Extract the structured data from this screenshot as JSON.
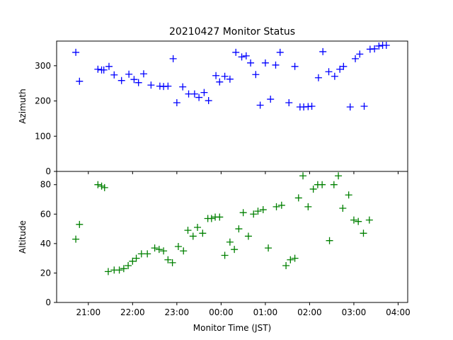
{
  "chart_data": {
    "type": "scatter",
    "title": "20210427 Monitor Status",
    "xlabel": "Monitor Time (JST)",
    "x_ticks": [
      "21:00",
      "22:00",
      "23:00",
      "00:00",
      "01:00",
      "02:00",
      "03:00",
      "04:00"
    ],
    "panels": [
      {
        "ylabel": "Azimuth",
        "ylim": [
          0,
          370
        ],
        "y_ticks": [
          0,
          100,
          200,
          300
        ],
        "series": [
          {
            "marker": "plus",
            "color": "#0000ff",
            "points": [
              [
                "20:43",
                338
              ],
              [
                "20:48",
                256
              ],
              [
                "21:13",
                290
              ],
              [
                "21:18",
                288
              ],
              [
                "21:21",
                288
              ],
              [
                "21:28",
                298
              ],
              [
                "21:35",
                274
              ],
              [
                "21:45",
                258
              ],
              [
                "21:55",
                276
              ],
              [
                "22:02",
                261
              ],
              [
                "22:08",
                252
              ],
              [
                "22:15",
                277
              ],
              [
                "22:25",
                245
              ],
              [
                "22:37",
                242
              ],
              [
                "22:42",
                241
              ],
              [
                "22:48",
                242
              ],
              [
                "22:55",
                320
              ],
              [
                "23:00",
                195
              ],
              [
                "23:08",
                240
              ],
              [
                "23:16",
                220
              ],
              [
                "23:24",
                220
              ],
              [
                "23:30",
                210
              ],
              [
                "23:37",
                224
              ],
              [
                "23:43",
                201
              ],
              [
                "23:53",
                272
              ],
              [
                "23:58",
                254
              ],
              [
                "00:05",
                270
              ],
              [
                "00:12",
                262
              ],
              [
                "00:20",
                338
              ],
              [
                "00:28",
                325
              ],
              [
                "00:34",
                328
              ],
              [
                "00:40",
                308
              ],
              [
                "00:47",
                275
              ],
              [
                "00:53",
                188
              ],
              [
                "01:00",
                308
              ],
              [
                "01:07",
                205
              ],
              [
                "01:14",
                302
              ],
              [
                "01:20",
                338
              ],
              [
                "01:32",
                195
              ],
              [
                "01:40",
                298
              ],
              [
                "01:47",
                183
              ],
              [
                "01:52",
                183
              ],
              [
                "01:58",
                184
              ],
              [
                "02:03",
                185
              ],
              [
                "02:12",
                266
              ],
              [
                "02:18",
                340
              ],
              [
                "02:26",
                283
              ],
              [
                "02:34",
                270
              ],
              [
                "02:41",
                290
              ],
              [
                "02:46",
                298
              ],
              [
                "02:55",
                183
              ],
              [
                "03:02",
                320
              ],
              [
                "03:08",
                333
              ],
              [
                "03:14",
                185
              ],
              [
                "03:22",
                347
              ],
              [
                "03:28",
                348
              ],
              [
                "03:34",
                356
              ],
              [
                "03:39",
                358
              ],
              [
                "03:44",
                358
              ]
            ]
          }
        ]
      },
      {
        "ylabel": "Altitude",
        "ylim": [
          0,
          89
        ],
        "y_ticks": [
          0,
          20,
          40,
          60,
          80
        ],
        "series": [
          {
            "marker": "plus",
            "color": "#008000",
            "points": [
              [
                "20:43",
                43
              ],
              [
                "20:48",
                53
              ],
              [
                "21:13",
                80
              ],
              [
                "21:18",
                79
              ],
              [
                "21:22",
                78
              ],
              [
                "21:27",
                21
              ],
              [
                "21:35",
                22
              ],
              [
                "21:42",
                22
              ],
              [
                "21:48",
                23
              ],
              [
                "21:54",
                25
              ],
              [
                "22:00",
                28
              ],
              [
                "22:05",
                30
              ],
              [
                "22:12",
                33
              ],
              [
                "22:20",
                33
              ],
              [
                "22:30",
                37
              ],
              [
                "22:36",
                36
              ],
              [
                "22:42",
                35
              ],
              [
                "22:48",
                29
              ],
              [
                "22:54",
                27
              ],
              [
                "23:02",
                38
              ],
              [
                "23:09",
                35
              ],
              [
                "23:15",
                49
              ],
              [
                "23:22",
                45
              ],
              [
                "23:28",
                51
              ],
              [
                "23:35",
                47
              ],
              [
                "23:42",
                57
              ],
              [
                "23:47",
                57
              ],
              [
                "23:52",
                58
              ],
              [
                "23:58",
                58
              ],
              [
                "00:05",
                32
              ],
              [
                "00:12",
                41
              ],
              [
                "00:18",
                36
              ],
              [
                "00:24",
                50
              ],
              [
                "00:30",
                61
              ],
              [
                "00:37",
                45
              ],
              [
                "00:44",
                60
              ],
              [
                "00:50",
                62
              ],
              [
                "00:57",
                63
              ],
              [
                "01:04",
                37
              ],
              [
                "01:15",
                65
              ],
              [
                "01:22",
                66
              ],
              [
                "01:28",
                25
              ],
              [
                "01:34",
                29
              ],
              [
                "01:40",
                30
              ],
              [
                "01:45",
                71
              ],
              [
                "01:51",
                86
              ],
              [
                "01:58",
                65
              ],
              [
                "02:05",
                77
              ],
              [
                "02:11",
                80
              ],
              [
                "02:17",
                80
              ],
              [
                "02:27",
                42
              ],
              [
                "02:33",
                80
              ],
              [
                "02:39",
                86
              ],
              [
                "02:45",
                64
              ],
              [
                "02:53",
                73
              ],
              [
                "03:00",
                56
              ],
              [
                "03:06",
                55
              ],
              [
                "03:13",
                47
              ],
              [
                "03:21",
                56
              ]
            ]
          }
        ]
      }
    ]
  }
}
